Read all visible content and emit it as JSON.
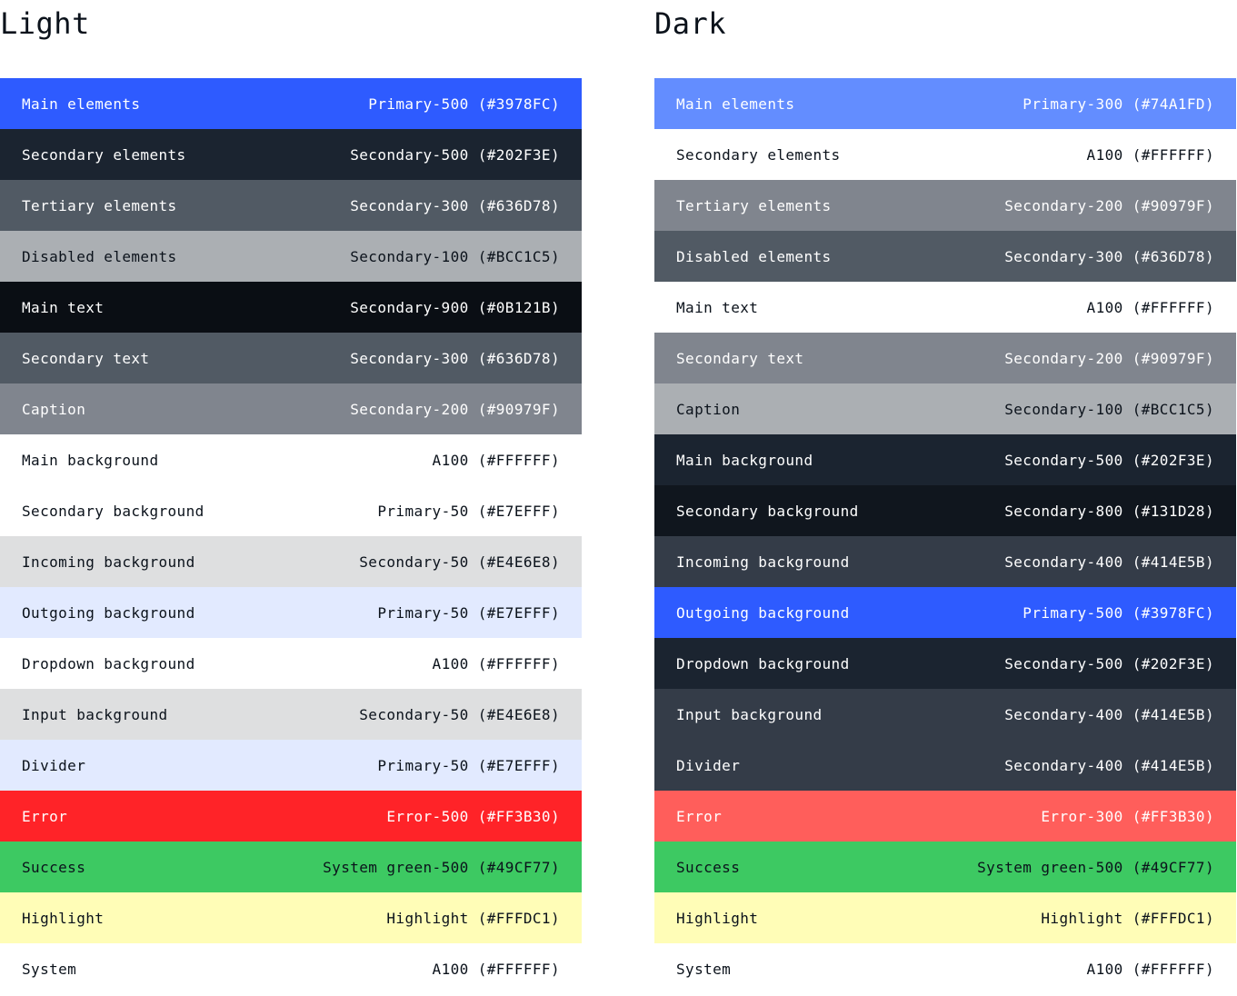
{
  "light": {
    "title": "Light",
    "rows": [
      {
        "label": "Main elements",
        "value": "Primary-500 (#3978FC)",
        "bg": "#2E5BFF",
        "fg": "#FFFFFF"
      },
      {
        "label": "Secondary elements",
        "value": "Secondary-500 (#202F3E)",
        "bg": "#1B2430",
        "fg": "#FFFFFF"
      },
      {
        "label": "Tertiary elements",
        "value": "Secondary-300 (#636D78)",
        "bg": "#515A64",
        "fg": "#FFFFFF"
      },
      {
        "label": "Disabled elements",
        "value": "Secondary-100 (#BCC1C5)",
        "bg": "#ABAFB3",
        "fg": "#0B121B"
      },
      {
        "label": "Main text",
        "value": "Secondary-900 (#0B121B)",
        "bg": "#0A0E14",
        "fg": "#FFFFFF"
      },
      {
        "label": "Secondary text",
        "value": "Secondary-300 (#636D78)",
        "bg": "#515A64",
        "fg": "#FFFFFF"
      },
      {
        "label": "Caption",
        "value": "Secondary-200 (#90979F)",
        "bg": "#80858E",
        "fg": "#FFFFFF"
      },
      {
        "label": "Main background",
        "value": "A100 (#FFFFFF)",
        "bg": "#FFFFFF",
        "fg": "#0B121B"
      },
      {
        "label": "Secondary background",
        "value": "Primary-50 (#E7EFFF)",
        "bg": "#FFFFFF",
        "fg": "#0B121B"
      },
      {
        "label": "Incoming background",
        "value": "Secondary-50 (#E4E6E8)",
        "bg": "#DEDFE0",
        "fg": "#0B121B"
      },
      {
        "label": "Outgoing background",
        "value": "Primary-50 (#E7EFFF)",
        "bg": "#E2EAFF",
        "fg": "#0B121B"
      },
      {
        "label": "Dropdown background",
        "value": "A100 (#FFFFFF)",
        "bg": "#FFFFFF",
        "fg": "#0B121B"
      },
      {
        "label": "Input background",
        "value": "Secondary-50 (#E4E6E8)",
        "bg": "#DEDFE0",
        "fg": "#0B121B"
      },
      {
        "label": "Divider",
        "value": "Primary-50 (#E7EFFF)",
        "bg": "#E2EAFF",
        "fg": "#0B121B"
      },
      {
        "label": "Error",
        "value": "Error-500 (#FF3B30)",
        "bg": "#FF2328",
        "fg": "#FFFFFF"
      },
      {
        "label": "Success",
        "value": "System green-500 (#49CF77)",
        "bg": "#3DC962",
        "fg": "#0B121B"
      },
      {
        "label": "Highlight",
        "value": "Highlight (#FFFDC1)",
        "bg": "#FFFDB7",
        "fg": "#0B121B"
      },
      {
        "label": "System",
        "value": "A100 (#FFFFFF)",
        "bg": "#FFFFFF",
        "fg": "#0B121B"
      }
    ]
  },
  "dark": {
    "title": "Dark",
    "rows": [
      {
        "label": "Main elements",
        "value": "Primary-300 (#74A1FD)",
        "bg": "#638DFF",
        "fg": "#FFFFFF"
      },
      {
        "label": "Secondary elements",
        "value": "A100 (#FFFFFF)",
        "bg": "#FFFFFF",
        "fg": "#0B121B"
      },
      {
        "label": "Tertiary elements",
        "value": "Secondary-200 (#90979F)",
        "bg": "#80858E",
        "fg": "#FFFFFF"
      },
      {
        "label": "Disabled elements",
        "value": "Secondary-300 (#636D78)",
        "bg": "#515A64",
        "fg": "#FFFFFF"
      },
      {
        "label": "Main text",
        "value": "A100 (#FFFFFF)",
        "bg": "#FFFFFF",
        "fg": "#0B121B"
      },
      {
        "label": "Secondary text",
        "value": "Secondary-200 (#90979F)",
        "bg": "#80858E",
        "fg": "#FFFFFF"
      },
      {
        "label": "Caption",
        "value": "Secondary-100 (#BCC1C5)",
        "bg": "#ABAFB3",
        "fg": "#0B121B"
      },
      {
        "label": "Main background",
        "value": "Secondary-500 (#202F3E)",
        "bg": "#1B2430",
        "fg": "#FFFFFF"
      },
      {
        "label": "Secondary background",
        "value": "Secondary-800 (#131D28)",
        "bg": "#10161E",
        "fg": "#FFFFFF"
      },
      {
        "label": "Incoming background",
        "value": "Secondary-400 (#414E5B)",
        "bg": "#343C48",
        "fg": "#FFFFFF"
      },
      {
        "label": "Outgoing background",
        "value": "Primary-500 (#3978FC)",
        "bg": "#2E5BFF",
        "fg": "#FFFFFF"
      },
      {
        "label": "Dropdown background",
        "value": "Secondary-500 (#202F3E)",
        "bg": "#1B2430",
        "fg": "#FFFFFF"
      },
      {
        "label": "Input background",
        "value": "Secondary-400 (#414E5B)",
        "bg": "#343C48",
        "fg": "#FFFFFF"
      },
      {
        "label": "Divider",
        "value": "Secondary-400 (#414E5B)",
        "bg": "#343C48",
        "fg": "#FFFFFF"
      },
      {
        "label": "Error",
        "value": "Error-300 (#FF3B30)",
        "bg": "#FF5E5B",
        "fg": "#FFFFFF"
      },
      {
        "label": "Success",
        "value": "System green-500 (#49CF77)",
        "bg": "#3DC962",
        "fg": "#0B121B"
      },
      {
        "label": "Highlight",
        "value": "Highlight (#FFFDC1)",
        "bg": "#FFFDB7",
        "fg": "#0B121B"
      },
      {
        "label": "System",
        "value": "A100 (#FFFFFF)",
        "bg": "#FFFFFF",
        "fg": "#0B121B"
      }
    ]
  }
}
